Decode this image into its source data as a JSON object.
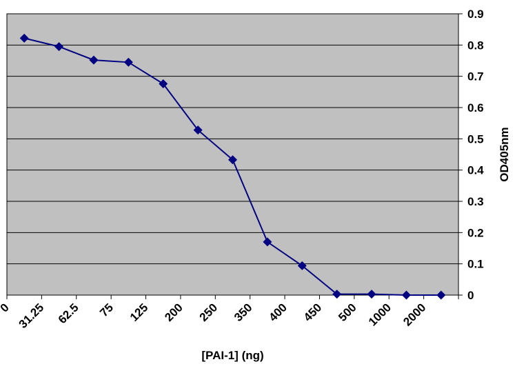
{
  "chart_data": {
    "type": "line",
    "title": "",
    "xlabel": "[PAI-1] (ng)",
    "ylabel": "OD405nm",
    "categories": [
      "0",
      "31.25",
      "62.5",
      "75",
      "125",
      "200",
      "250",
      "350",
      "400",
      "450",
      "500",
      "1000",
      "2000"
    ],
    "series": [
      {
        "values": [
          0.822,
          0.795,
          0.752,
          0.745,
          0.676,
          0.528,
          0.433,
          0.17,
          0.094,
          0.003,
          0.003,
          0.0,
          0.0
        ],
        "color": "#000080",
        "marker": "diamond"
      }
    ],
    "ylim": [
      0,
      0.9
    ],
    "yticks": [
      "0",
      "0.1",
      "0.2",
      "0.3",
      "0.4",
      "0.5",
      "0.6",
      "0.7",
      "0.8",
      "0.9"
    ],
    "y_axis_position": "right",
    "grid": true,
    "legend": "none",
    "plot_background": "#c0c0c0",
    "gridline_color": "#000000"
  }
}
